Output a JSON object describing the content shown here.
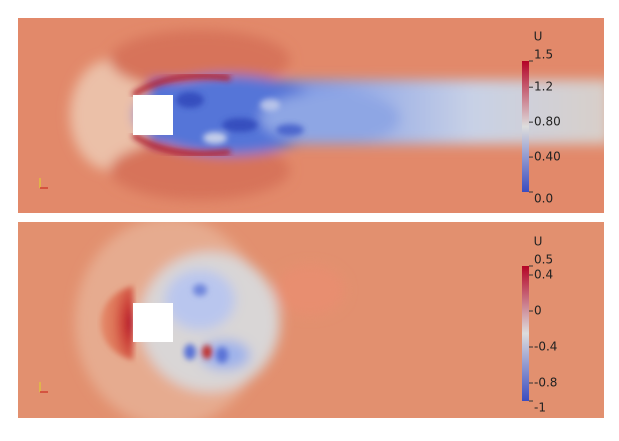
{
  "panels": [
    {
      "colorbar": {
        "title": "U",
        "range": [
          0,
          1.5
        ],
        "ticks": [
          1.5,
          1.2,
          {
            "value": 0.8,
            "label": "0.80"
          },
          {
            "value": 0.4,
            "label": "0.40"
          },
          {
            "value": 0,
            "label": "0.0"
          }
        ]
      }
    },
    {
      "colorbar": {
        "title": "U",
        "range": [
          -1,
          0.5
        ],
        "ticks": [
          0.5,
          0.4,
          0,
          -0.4,
          -0.8,
          -1
        ]
      }
    }
  ]
}
